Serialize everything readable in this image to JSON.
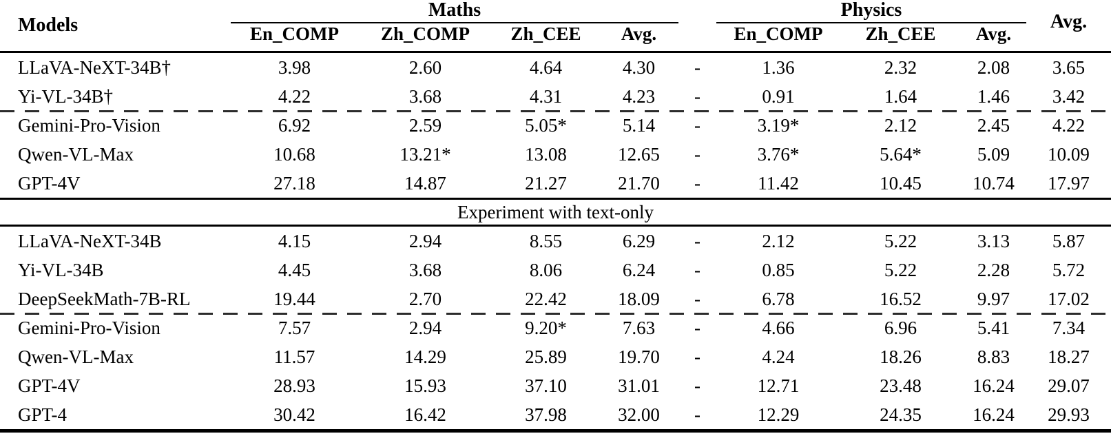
{
  "header": {
    "models": "Models",
    "overall_avg": "Avg.",
    "maths": {
      "label": "Maths",
      "cols": [
        "En_COMP",
        "Zh_COMP",
        "Zh_CEE",
        "Avg."
      ]
    },
    "physics": {
      "label": "Physics",
      "cols": [
        "En_COMP",
        "Zh_CEE",
        "Avg."
      ]
    }
  },
  "section_label": "Experiment with text-only",
  "rows": {
    "r0": {
      "model": "LLaVA-NeXT-34B†",
      "v": [
        "3.98",
        "2.60",
        "4.64",
        "4.30",
        "-",
        "1.36",
        "2.32",
        "2.08",
        "3.65"
      ]
    },
    "r1": {
      "model": "Yi-VL-34B†",
      "v": [
        "4.22",
        "3.68",
        "4.31",
        "4.23",
        "-",
        "0.91",
        "1.64",
        "1.46",
        "3.42"
      ]
    },
    "r2": {
      "model": "Gemini-Pro-Vision",
      "v": [
        "6.92",
        "2.59",
        "5.05*",
        "5.14",
        "-",
        "3.19*",
        "2.12",
        "2.45",
        "4.22"
      ]
    },
    "r3": {
      "model": "Qwen-VL-Max",
      "v": [
        "10.68",
        "13.21*",
        "13.08",
        "12.65",
        "-",
        "3.76*",
        "5.64*",
        "5.09",
        "10.09"
      ]
    },
    "r4": {
      "model": "GPT-4V",
      "v": [
        "27.18",
        "14.87",
        "21.27",
        "21.70",
        "-",
        "11.42",
        "10.45",
        "10.74",
        "17.97"
      ]
    },
    "r5": {
      "model": "LLaVA-NeXT-34B",
      "v": [
        "4.15",
        "2.94",
        "8.55",
        "6.29",
        "-",
        "2.12",
        "5.22",
        "3.13",
        "5.87"
      ]
    },
    "r6": {
      "model": "Yi-VL-34B",
      "v": [
        "4.45",
        "3.68",
        "8.06",
        "6.24",
        "-",
        "0.85",
        "5.22",
        "2.28",
        "5.72"
      ]
    },
    "r7": {
      "model": "DeepSeekMath-7B-RL",
      "v": [
        "19.44",
        "2.70",
        "22.42",
        "18.09",
        "-",
        "6.78",
        "16.52",
        "9.97",
        "17.02"
      ]
    },
    "r8": {
      "model": "Gemini-Pro-Vision",
      "v": [
        "7.57",
        "2.94",
        "9.20*",
        "7.63",
        "-",
        "4.66",
        "6.96",
        "5.41",
        "7.34"
      ]
    },
    "r9": {
      "model": "Qwen-VL-Max",
      "v": [
        "11.57",
        "14.29",
        "25.89",
        "19.70",
        "-",
        "4.24",
        "18.26",
        "8.83",
        "18.27"
      ]
    },
    "r10": {
      "model": "GPT-4V",
      "v": [
        "28.93",
        "15.93",
        "37.10",
        "31.01",
        "-",
        "12.71",
        "23.48",
        "16.24",
        "29.07"
      ]
    },
    "r11": {
      "model": "GPT-4",
      "v": [
        "30.42",
        "16.42",
        "37.98",
        "32.00",
        "-",
        "12.29",
        "24.35",
        "16.24",
        "29.93"
      ]
    }
  }
}
